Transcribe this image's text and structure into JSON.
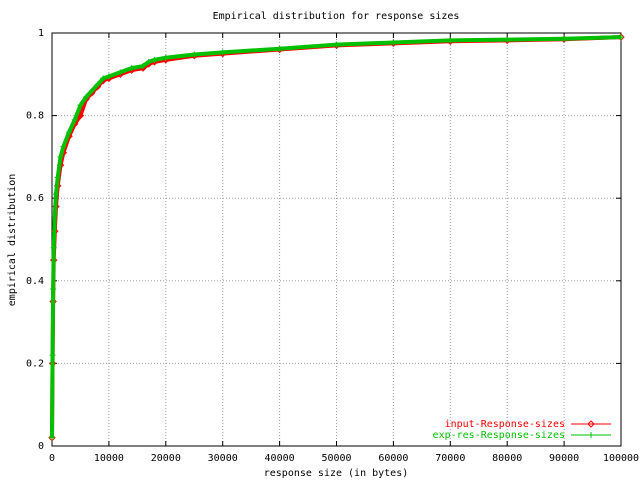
{
  "chart_data": {
    "type": "line",
    "title": "Empirical distribution for response sizes",
    "x_label": "response size (in bytes)",
    "y_label": "empirical distribution",
    "x": [
      0,
      100,
      200,
      300,
      500,
      700,
      1000,
      1500,
      2000,
      3000,
      4000,
      5000,
      6000,
      7000,
      8000,
      9000,
      10000,
      12000,
      14000,
      16000,
      17000,
      18000,
      20000,
      25000,
      30000,
      40000,
      50000,
      60000,
      70000,
      80000,
      90000,
      100000
    ],
    "series": [
      {
        "name": "input-Response-sizes",
        "color": "#ff0000",
        "marker": "diamond",
        "values": [
          0.02,
          0.2,
          0.35,
          0.45,
          0.52,
          0.58,
          0.63,
          0.68,
          0.71,
          0.75,
          0.78,
          0.8,
          0.84,
          0.855,
          0.87,
          0.885,
          0.89,
          0.9,
          0.91,
          0.915,
          0.925,
          0.93,
          0.935,
          0.945,
          0.95,
          0.96,
          0.97,
          0.975,
          0.98,
          0.982,
          0.985,
          0.99
        ]
      },
      {
        "name": "exp-res-Response-sizes",
        "color": "#00c000",
        "marker": "plus",
        "values": [
          0.02,
          0.22,
          0.38,
          0.48,
          0.56,
          0.61,
          0.65,
          0.7,
          0.725,
          0.76,
          0.79,
          0.825,
          0.845,
          0.86,
          0.875,
          0.89,
          0.895,
          0.905,
          0.915,
          0.92,
          0.93,
          0.935,
          0.94,
          0.948,
          0.953,
          0.962,
          0.972,
          0.977,
          0.982,
          0.984,
          0.986,
          0.99
        ]
      }
    ],
    "xlim": [
      0,
      100000
    ],
    "xticks": [
      0,
      10000,
      20000,
      30000,
      40000,
      50000,
      60000,
      70000,
      80000,
      90000,
      100000
    ],
    "ylim": [
      0,
      1
    ],
    "yticks": [
      0,
      0.2,
      0.4,
      0.6,
      0.8,
      1
    ],
    "grid": true,
    "legend": "bottom-right"
  }
}
